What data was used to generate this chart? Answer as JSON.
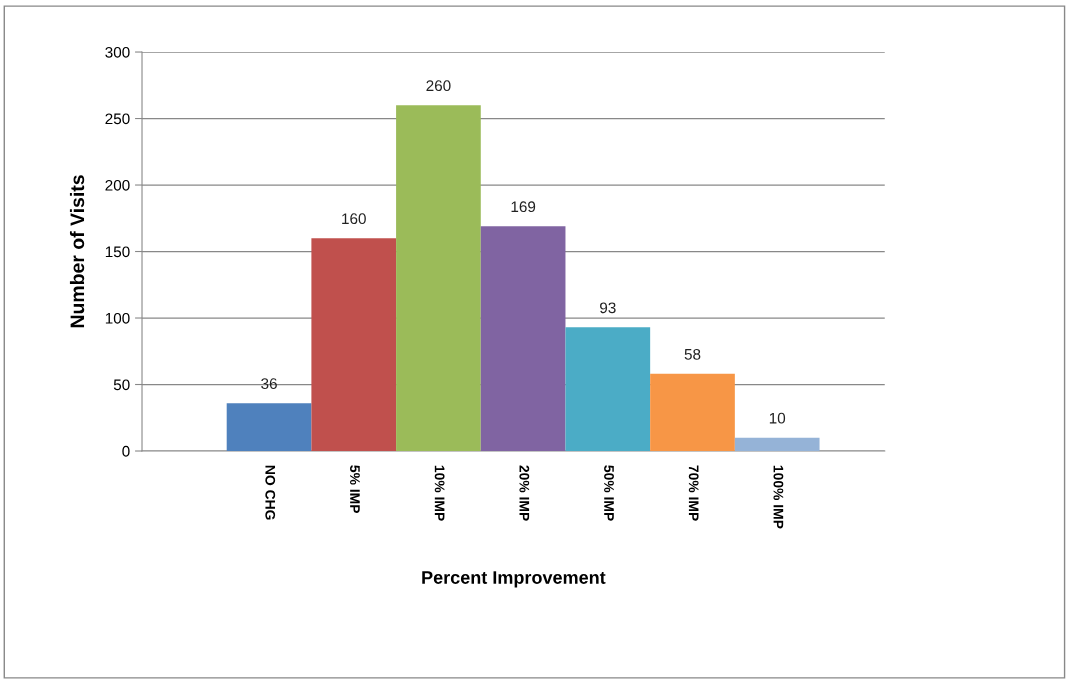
{
  "chart_data": {
    "type": "bar",
    "xlabel": "Percent Improvement",
    "ylabel": "Number of Visits",
    "categories": [
      "NO CHG",
      "5% IMP",
      "10% IMP",
      "20% IMP",
      "50% IMP",
      "70% IMP",
      "100% IMP"
    ],
    "values": [
      36,
      160,
      260,
      169,
      93,
      58,
      10
    ],
    "colors": [
      "#4f81bd",
      "#c0504d",
      "#9bbb59",
      "#8064a2",
      "#4bacc6",
      "#f79646",
      "#95b3d7"
    ],
    "ylim": [
      0,
      300
    ],
    "yticks": [
      0,
      50,
      100,
      150,
      200,
      250,
      300
    ],
    "grid": "y",
    "data_labels": true,
    "legend": false
  }
}
